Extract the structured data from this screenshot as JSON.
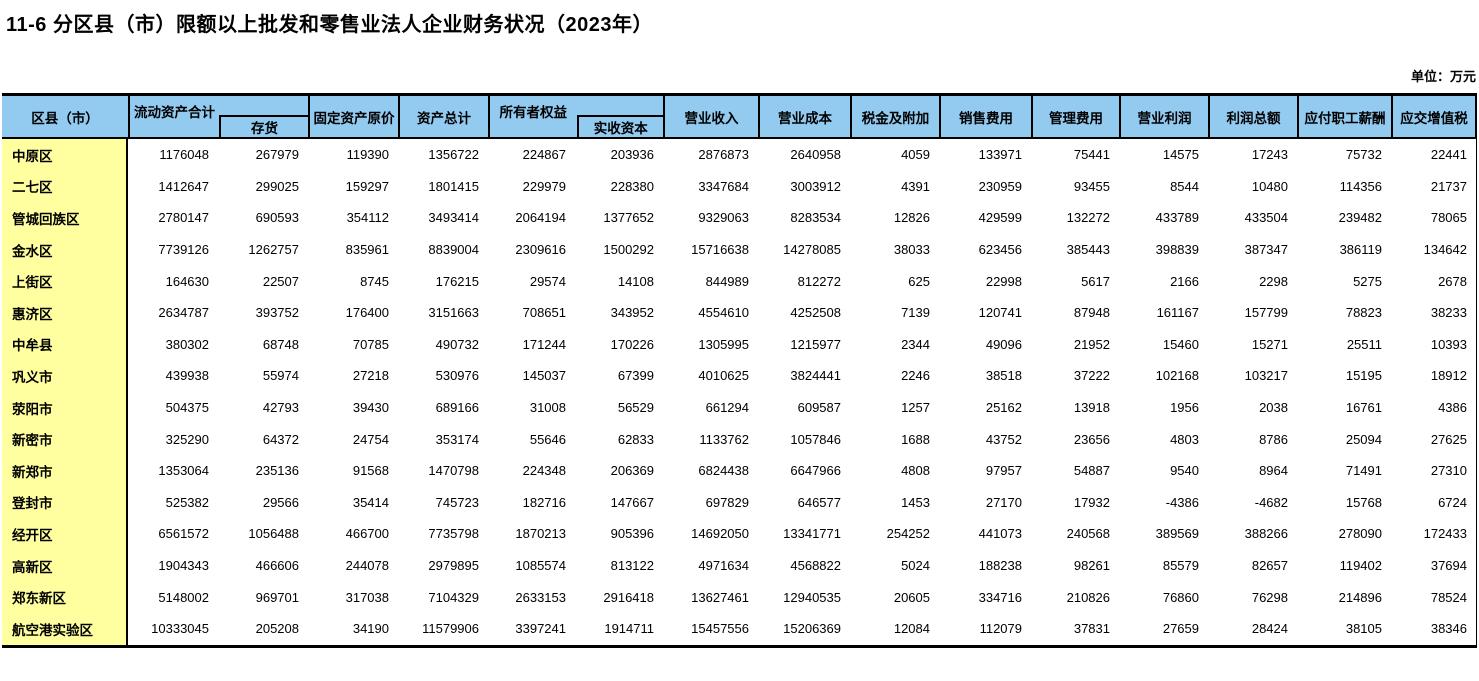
{
  "title": "11-6 分区县（市）限额以上批发和零售业法人企业财务状况（2023年）",
  "unit": "单位：万元",
  "colors": {
    "header_bg": "#92caf0",
    "label_bg": "#ffff9f",
    "border": "#000000"
  },
  "table": {
    "header": {
      "region": "区县（市）",
      "current_assets": "流动资产合计",
      "inventory": "存货",
      "fixed_assets": "固定资产原价",
      "total_assets": "资产总计",
      "owners_equity": "所有者权益",
      "paid_in_capital": "实收资本",
      "cols": [
        "营业收入",
        "营业成本",
        "税金及附加",
        "销售费用",
        "管理费用",
        "营业利润",
        "利润总额",
        "应付职工薪酬",
        "应交增值税"
      ]
    },
    "column_order": [
      "流动资产合计",
      "存货",
      "固定资产原价",
      "资产总计",
      "所有者权益",
      "实收资本",
      "营业收入",
      "营业成本",
      "税金及附加",
      "销售费用",
      "管理费用",
      "营业利润",
      "利润总额",
      "应付职工薪酬",
      "应交增值税"
    ],
    "rows": [
      {
        "label": "中原区",
        "values": [
          1176048,
          267979,
          119390,
          1356722,
          224867,
          203936,
          2876873,
          2640958,
          4059,
          133971,
          75441,
          14575,
          17243,
          75732,
          22441
        ]
      },
      {
        "label": "二七区",
        "values": [
          1412647,
          299025,
          159297,
          1801415,
          229979,
          228380,
          3347684,
          3003912,
          4391,
          230959,
          93455,
          8544,
          10480,
          114356,
          21737
        ]
      },
      {
        "label": "管城回族区",
        "values": [
          2780147,
          690593,
          354112,
          3493414,
          2064194,
          1377652,
          9329063,
          8283534,
          12826,
          429599,
          132272,
          433789,
          433504,
          239482,
          78065
        ]
      },
      {
        "label": "金水区",
        "values": [
          7739126,
          1262757,
          835961,
          8839004,
          2309616,
          1500292,
          15716638,
          14278085,
          38033,
          623456,
          385443,
          398839,
          387347,
          386119,
          134642
        ]
      },
      {
        "label": "上街区",
        "values": [
          164630,
          22507,
          8745,
          176215,
          29574,
          14108,
          844989,
          812272,
          625,
          22998,
          5617,
          2166,
          2298,
          5275,
          2678
        ]
      },
      {
        "label": "惠济区",
        "values": [
          2634787,
          393752,
          176400,
          3151663,
          708651,
          343952,
          4554610,
          4252508,
          7139,
          120741,
          87948,
          161167,
          157799,
          78823,
          38233
        ]
      },
      {
        "label": "中牟县",
        "values": [
          380302,
          68748,
          70785,
          490732,
          171244,
          170226,
          1305995,
          1215977,
          2344,
          49096,
          21952,
          15460,
          15271,
          25511,
          10393
        ]
      },
      {
        "label": "巩义市",
        "values": [
          439938,
          55974,
          27218,
          530976,
          145037,
          67399,
          4010625,
          3824441,
          2246,
          38518,
          37222,
          102168,
          103217,
          15195,
          18912
        ]
      },
      {
        "label": "荥阳市",
        "values": [
          504375,
          42793,
          39430,
          689166,
          31008,
          56529,
          661294,
          609587,
          1257,
          25162,
          13918,
          1956,
          2038,
          16761,
          4386
        ]
      },
      {
        "label": "新密市",
        "values": [
          325290,
          64372,
          24754,
          353174,
          55646,
          62833,
          1133762,
          1057846,
          1688,
          43752,
          23656,
          4803,
          8786,
          25094,
          27625
        ]
      },
      {
        "label": "新郑市",
        "values": [
          1353064,
          235136,
          91568,
          1470798,
          224348,
          206369,
          6824438,
          6647966,
          4808,
          97957,
          54887,
          9540,
          8964,
          71491,
          27310
        ]
      },
      {
        "label": "登封市",
        "values": [
          525382,
          29566,
          35414,
          745723,
          182716,
          147667,
          697829,
          646577,
          1453,
          27170,
          17932,
          -4386,
          -4682,
          15768,
          6724
        ]
      },
      {
        "label": "经开区",
        "values": [
          6561572,
          1056488,
          466700,
          7735798,
          1870213,
          905396,
          14692050,
          13341771,
          254252,
          441073,
          240568,
          389569,
          388266,
          278090,
          172433
        ]
      },
      {
        "label": "高新区",
        "values": [
          1904343,
          466606,
          244078,
          2979895,
          1085574,
          813122,
          4971634,
          4568822,
          5024,
          188238,
          98261,
          85579,
          82657,
          119402,
          37694
        ]
      },
      {
        "label": "郑东新区",
        "values": [
          5148002,
          969701,
          317038,
          7104329,
          2633153,
          2916418,
          13627461,
          12940535,
          20605,
          334716,
          210826,
          76860,
          76298,
          214896,
          78524
        ]
      },
      {
        "label": "航空港实验区",
        "values": [
          10333045,
          205208,
          34190,
          11579906,
          3397241,
          1914711,
          15457556,
          15206369,
          12084,
          112079,
          37831,
          27659,
          28424,
          38105,
          38346
        ]
      }
    ]
  }
}
